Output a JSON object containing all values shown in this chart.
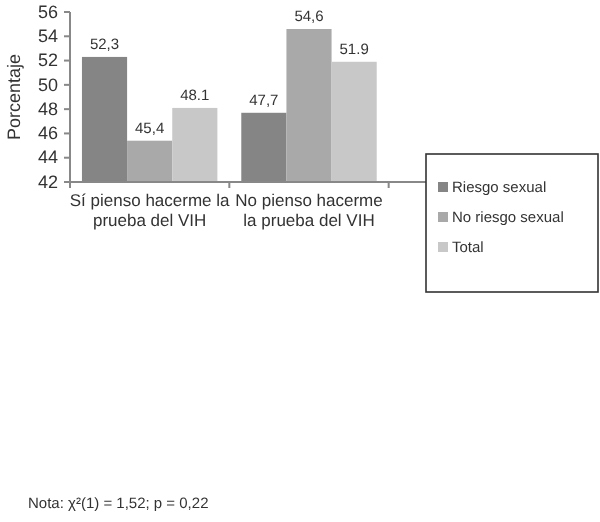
{
  "chart_data": {
    "type": "bar",
    "ylabel": "Porcentaje",
    "categories": [
      "Sí pienso hacerme la prueba del VIH",
      "No pienso hacerme la prueba del VIH",
      null
    ],
    "series": [
      {
        "name": "Riesgo sexual",
        "color": "#858585",
        "values": [
          52.3,
          47.7,
          null
        ],
        "value_labels": [
          "52,3",
          "47,7",
          null
        ]
      },
      {
        "name": "No riesgo sexual",
        "color": "#a9a9a9",
        "values": [
          45.4,
          54.6,
          null
        ],
        "value_labels": [
          "45,4",
          "54,6",
          null
        ]
      },
      {
        "name": "Total",
        "color": "#c8c8c8",
        "values": [
          48.1,
          51.9,
          null
        ],
        "value_labels": [
          "48.1",
          "51.9",
          null
        ]
      }
    ],
    "ylim": [
      42,
      56
    ],
    "yticks": [
      42,
      44,
      46,
      48,
      50,
      52,
      54,
      56
    ],
    "grid": false,
    "legend": "right",
    "annotations": [
      "Nota: χ²(1) = 1,52; p = 0,22"
    ]
  }
}
